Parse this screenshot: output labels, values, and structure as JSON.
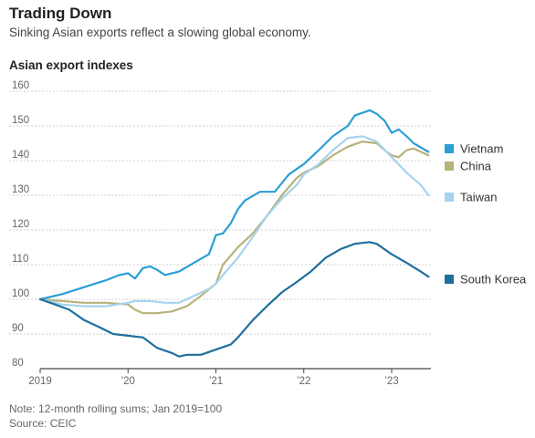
{
  "header": {
    "title": "Trading Down",
    "subtitle": "Sinking Asian exports reflect a slowing global economy."
  },
  "footer": {
    "note": "Note: 12-month rolling sums; Jan 2019=100",
    "source": "Source: CEIC"
  },
  "chart_data": {
    "type": "line",
    "title": "Trading Down",
    "subtitle": "Sinking Asian exports reflect a slowing global economy.",
    "ylabel": "Asian export indexes",
    "xlabel": "",
    "ylim": [
      80,
      160
    ],
    "xlim": [
      2019.0,
      2023.5
    ],
    "yticks": [
      80,
      90,
      100,
      110,
      120,
      130,
      140,
      150,
      160
    ],
    "xticks": [
      {
        "value": 2019,
        "label": "2019"
      },
      {
        "value": 2020,
        "label": "’20"
      },
      {
        "value": 2021,
        "label": "’21"
      },
      {
        "value": 2022,
        "label": "’22"
      },
      {
        "value": 2023,
        "label": "’23"
      }
    ],
    "grid": "horizontal",
    "legend": "right, at line ends",
    "series": [
      {
        "name": "Vietnam",
        "color": "#2b9fd6",
        "points": [
          [
            2019.0,
            100
          ],
          [
            2019.25,
            101.5
          ],
          [
            2019.5,
            103.5
          ],
          [
            2019.75,
            105.5
          ],
          [
            2019.9,
            107
          ],
          [
            2020.0,
            107.5
          ],
          [
            2020.08,
            106
          ],
          [
            2020.17,
            109
          ],
          [
            2020.25,
            109.5
          ],
          [
            2020.33,
            108.5
          ],
          [
            2020.42,
            107
          ],
          [
            2020.58,
            108
          ],
          [
            2020.75,
            110.5
          ],
          [
            2020.92,
            113
          ],
          [
            2021.0,
            118.5
          ],
          [
            2021.08,
            119
          ],
          [
            2021.17,
            122
          ],
          [
            2021.25,
            126
          ],
          [
            2021.33,
            128.5
          ],
          [
            2021.5,
            131
          ],
          [
            2021.67,
            131
          ],
          [
            2021.83,
            136
          ],
          [
            2022.0,
            139
          ],
          [
            2022.17,
            143
          ],
          [
            2022.33,
            147
          ],
          [
            2022.5,
            150
          ],
          [
            2022.58,
            153
          ],
          [
            2022.75,
            154.5
          ],
          [
            2022.83,
            153.5
          ],
          [
            2022.92,
            151.5
          ],
          [
            2023.0,
            148
          ],
          [
            2023.08,
            149
          ],
          [
            2023.17,
            147
          ],
          [
            2023.25,
            145
          ],
          [
            2023.42,
            142.5
          ]
        ]
      },
      {
        "name": "China",
        "color": "#b8b27a",
        "points": [
          [
            2019.0,
            100
          ],
          [
            2019.25,
            99.5
          ],
          [
            2019.5,
            99
          ],
          [
            2019.75,
            99
          ],
          [
            2020.0,
            98.5
          ],
          [
            2020.08,
            97
          ],
          [
            2020.17,
            96
          ],
          [
            2020.33,
            96
          ],
          [
            2020.5,
            96.5
          ],
          [
            2020.67,
            98
          ],
          [
            2020.83,
            101
          ],
          [
            2021.0,
            104.5
          ],
          [
            2021.08,
            110
          ],
          [
            2021.25,
            115
          ],
          [
            2021.42,
            119
          ],
          [
            2021.58,
            124
          ],
          [
            2021.75,
            130
          ],
          [
            2021.92,
            135
          ],
          [
            2022.0,
            136.5
          ],
          [
            2022.17,
            138.5
          ],
          [
            2022.33,
            141.5
          ],
          [
            2022.5,
            144
          ],
          [
            2022.67,
            145.5
          ],
          [
            2022.83,
            145
          ],
          [
            2022.92,
            143
          ],
          [
            2023.0,
            141.5
          ],
          [
            2023.08,
            141
          ],
          [
            2023.17,
            143
          ],
          [
            2023.25,
            143.5
          ],
          [
            2023.42,
            141.5
          ]
        ]
      },
      {
        "name": "Taiwan",
        "color": "#a6d3ef",
        "points": [
          [
            2019.0,
            100
          ],
          [
            2019.25,
            98.5
          ],
          [
            2019.5,
            98
          ],
          [
            2019.75,
            98
          ],
          [
            2020.0,
            99
          ],
          [
            2020.08,
            99.5
          ],
          [
            2020.25,
            99.5
          ],
          [
            2020.42,
            99
          ],
          [
            2020.58,
            99
          ],
          [
            2020.75,
            101
          ],
          [
            2020.92,
            103
          ],
          [
            2021.0,
            104.5
          ],
          [
            2021.08,
            107
          ],
          [
            2021.25,
            112
          ],
          [
            2021.42,
            118
          ],
          [
            2021.58,
            124
          ],
          [
            2021.75,
            129
          ],
          [
            2021.92,
            133
          ],
          [
            2022.0,
            136
          ],
          [
            2022.17,
            139
          ],
          [
            2022.33,
            143
          ],
          [
            2022.5,
            146.5
          ],
          [
            2022.67,
            147
          ],
          [
            2022.83,
            145.5
          ],
          [
            2023.0,
            141
          ],
          [
            2023.17,
            136.5
          ],
          [
            2023.33,
            133
          ],
          [
            2023.42,
            130
          ]
        ]
      },
      {
        "name": "South Korea",
        "color": "#1f6e9e",
        "points": [
          [
            2019.0,
            100
          ],
          [
            2019.17,
            98.5
          ],
          [
            2019.33,
            97
          ],
          [
            2019.5,
            94
          ],
          [
            2019.67,
            92
          ],
          [
            2019.83,
            90
          ],
          [
            2020.0,
            89.5
          ],
          [
            2020.17,
            89
          ],
          [
            2020.33,
            86
          ],
          [
            2020.5,
            84.5
          ],
          [
            2020.58,
            83.5
          ],
          [
            2020.67,
            84
          ],
          [
            2020.83,
            84
          ],
          [
            2021.0,
            85.5
          ],
          [
            2021.17,
            87
          ],
          [
            2021.25,
            89
          ],
          [
            2021.42,
            94
          ],
          [
            2021.58,
            98
          ],
          [
            2021.75,
            102
          ],
          [
            2021.92,
            105
          ],
          [
            2022.08,
            108
          ],
          [
            2022.25,
            112
          ],
          [
            2022.42,
            114.5
          ],
          [
            2022.58,
            116
          ],
          [
            2022.75,
            116.5
          ],
          [
            2022.83,
            116
          ],
          [
            2023.0,
            113
          ],
          [
            2023.17,
            110.5
          ],
          [
            2023.33,
            108
          ],
          [
            2023.42,
            106.5
          ]
        ]
      }
    ],
    "legend_items": [
      {
        "name": "Vietnam",
        "color": "#2b9fd6"
      },
      {
        "name": "China",
        "color": "#b8b27a"
      },
      {
        "name": "Taiwan",
        "color": "#a6d3ef"
      },
      {
        "name": "South Korea",
        "color": "#1f6e9e"
      }
    ]
  }
}
